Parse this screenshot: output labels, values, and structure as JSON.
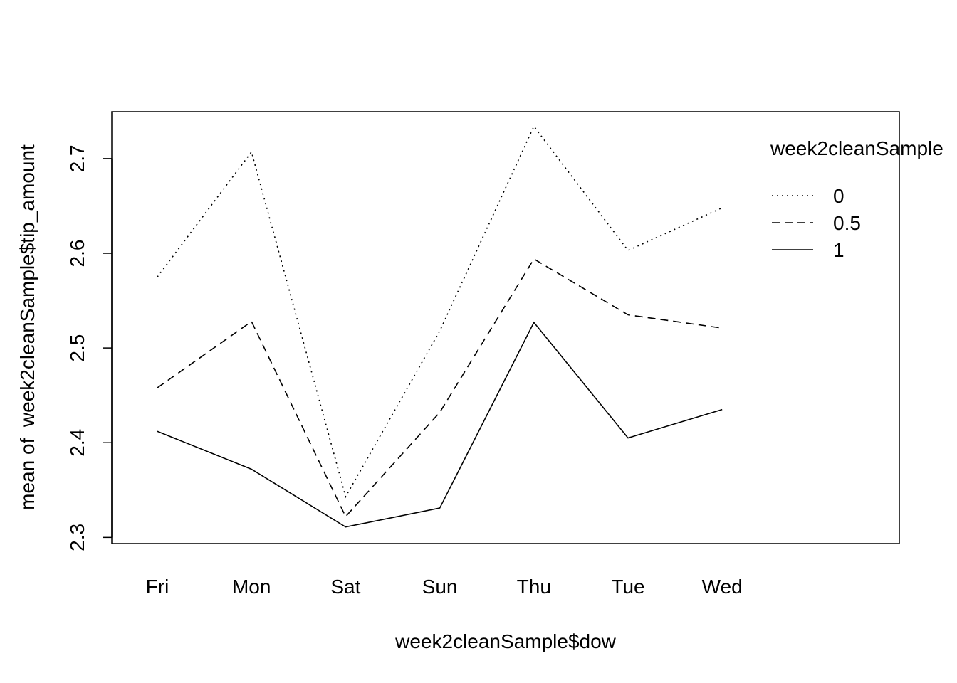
{
  "chart_data": {
    "type": "line",
    "xlabel": "week2cleanSample$dow",
    "ylabel": "mean of  week2cleanSample$tip_amount",
    "categories": [
      "Fri",
      "Mon",
      "Sat",
      "Sun",
      "Thu",
      "Tue",
      "Wed"
    ],
    "yticks": [
      "2.3",
      "2.4",
      "2.5",
      "2.6",
      "2.7"
    ],
    "ylim": [
      2.2935,
      2.7495
    ],
    "legend": {
      "title": "week2cleanSample",
      "placement": "top-right"
    },
    "series": [
      {
        "name": "0",
        "style": "dotted",
        "values": [
          2.575,
          2.707,
          2.343,
          2.518,
          2.734,
          2.603,
          2.648
        ]
      },
      {
        "name": "0.5",
        "style": "dashed",
        "values": [
          2.458,
          2.528,
          2.322,
          2.432,
          2.594,
          2.535,
          2.521
        ]
      },
      {
        "name": "1",
        "style": "solid",
        "values": [
          2.412,
          2.372,
          2.311,
          2.331,
          2.527,
          2.405,
          2.435
        ]
      }
    ],
    "grid": false,
    "colors": {
      "line": "#000000",
      "background": "#ffffff"
    }
  }
}
